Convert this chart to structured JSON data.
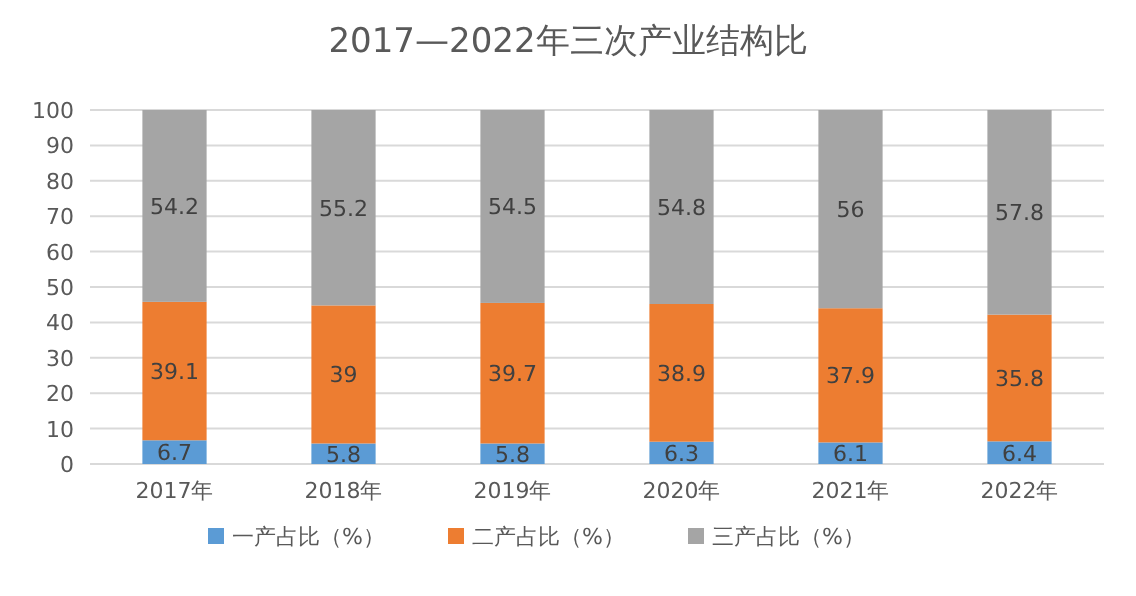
{
  "chart_data": {
    "type": "bar",
    "title": "2017—2022年三次产业结构比",
    "categories": [
      "2017年",
      "2018年",
      "2019年",
      "2020年",
      "2021年",
      "2022年"
    ],
    "series": [
      {
        "name": "一产占比（%）",
        "color": "#5b9bd5",
        "values": [
          6.7,
          5.8,
          5.8,
          6.3,
          6.1,
          6.4
        ]
      },
      {
        "name": "二产占比（%）",
        "color": "#ed7d31",
        "values": [
          39.1,
          39,
          39.7,
          38.9,
          37.9,
          35.8
        ]
      },
      {
        "name": "三产占比（%）",
        "color": "#a5a5a5",
        "values": [
          54.2,
          55.2,
          54.5,
          54.8,
          56,
          57.8
        ]
      }
    ],
    "stacked": true,
    "ylim": [
      0,
      100
    ],
    "yticks": [
      0,
      10,
      20,
      30,
      40,
      50,
      60,
      70,
      80,
      90,
      100
    ],
    "grid": "y",
    "legend": "bottom",
    "data_labels": true
  }
}
